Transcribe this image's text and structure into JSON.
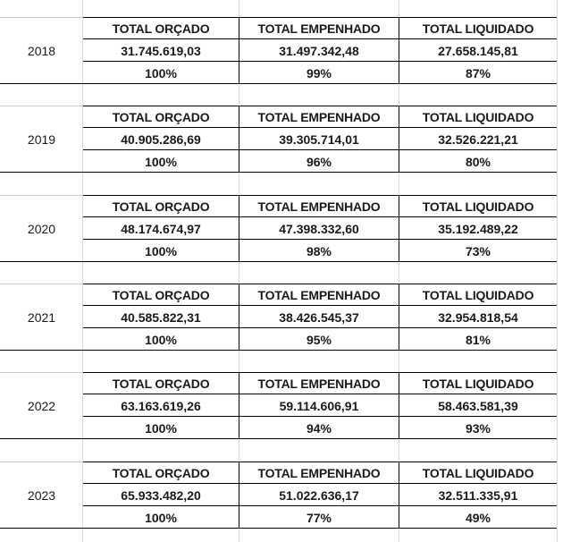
{
  "headers": {
    "orcado": "TOTAL ORÇADO",
    "empenhado": "TOTAL EMPENHADO",
    "liquidado": "TOTAL LIQUIDADO"
  },
  "years": [
    {
      "year": "2018",
      "orcado": "31.745.619,03",
      "empenhado": "31.497.342,48",
      "liquidado": "27.658.145,81",
      "pct_orcado": "100%",
      "pct_empenhado": "99%",
      "pct_liquidado": "87%"
    },
    {
      "year": "2019",
      "orcado": "40.905.286,69",
      "empenhado": "39.305.714,01",
      "liquidado": "32.526.221,21",
      "pct_orcado": "100%",
      "pct_empenhado": "96%",
      "pct_liquidado": "80%"
    },
    {
      "year": "2020",
      "orcado": "48.174.674,97",
      "empenhado": "47.398.332,60",
      "liquidado": "35.192.489,22",
      "pct_orcado": "100%",
      "pct_empenhado": "98%",
      "pct_liquidado": "73%"
    },
    {
      "year": "2021",
      "orcado": "40.585.822,31",
      "empenhado": "38.426.545,37",
      "liquidado": "32.954.818,54",
      "pct_orcado": "100%",
      "pct_empenhado": "95%",
      "pct_liquidado": "81%"
    },
    {
      "year": "2022",
      "orcado": "63.163.619,26",
      "empenhado": "59.114.606,91",
      "liquidado": "58.463.581,39",
      "pct_orcado": "100%",
      "pct_empenhado": "94%",
      "pct_liquidado": "93%"
    },
    {
      "year": "2023",
      "orcado": "65.933.482,20",
      "empenhado": "51.022.636,17",
      "liquidado": "32.511.335,91",
      "pct_orcado": "100%",
      "pct_empenhado": "77%",
      "pct_liquidado": "49%"
    }
  ]
}
